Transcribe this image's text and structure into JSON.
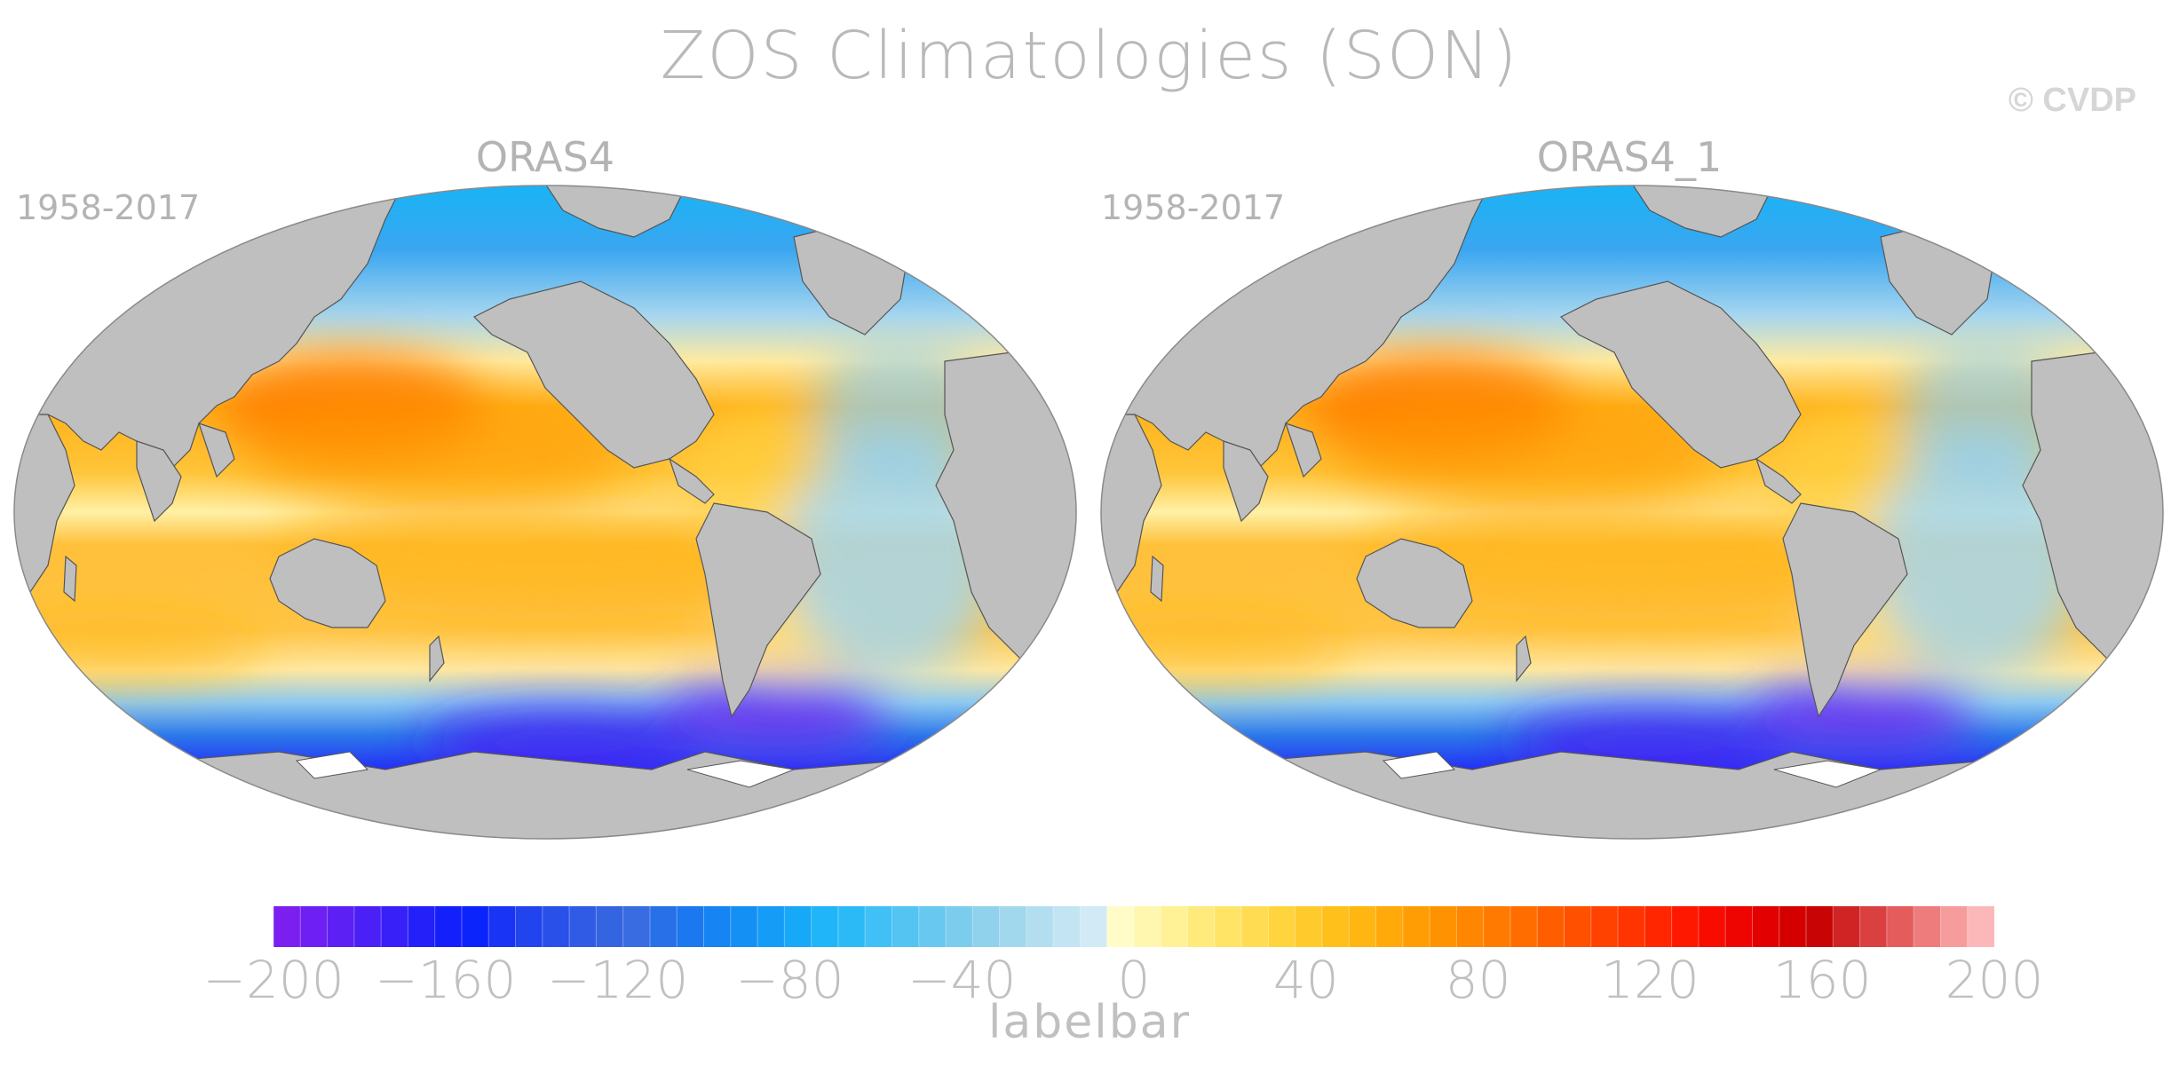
{
  "title": "ZOS Climatologies (SON)",
  "credit": "© CVDP",
  "panels": [
    {
      "title": "ORAS4",
      "period": "1958-2017"
    },
    {
      "title": "ORAS4_1",
      "period": "1958-2017"
    }
  ],
  "colorbar": {
    "label": "labelbar",
    "ticks": [
      "-200",
      "-160",
      "-120",
      "-80",
      "-40",
      "0",
      "40",
      "80",
      "120",
      "160",
      "200"
    ],
    "range": [
      -200,
      200
    ],
    "colors": [
      "#7b1ff0",
      "#6e1ff3",
      "#5c20f5",
      "#4a20f7",
      "#3720f8",
      "#2420fa",
      "#1420fc",
      "#0c24fc",
      "#1a34f5",
      "#2244ef",
      "#2a50ea",
      "#305ce5",
      "#3464e0",
      "#386ce0",
      "#2870e8",
      "#1c78ee",
      "#1684f2",
      "#1490f5",
      "#149cf7",
      "#18a8f8",
      "#20b4f8",
      "#2cbaf7",
      "#40c0f5",
      "#54c4f2",
      "#68c8f0",
      "#7ccced",
      "#90d2ec",
      "#a2d8ee",
      "#b2def0",
      "#c2e4f3",
      "#d2eaf6",
      "#fffcc8",
      "#fff7b0",
      "#fff196",
      "#ffea7c",
      "#ffe466",
      "#ffdc52",
      "#ffd43e",
      "#ffca2c",
      "#ffc01c",
      "#ffb612",
      "#ffaa0a",
      "#ff9e04",
      "#ff9200",
      "#ff8600",
      "#ff7a00",
      "#ff6c00",
      "#ff5e00",
      "#ff5000",
      "#ff4200",
      "#ff3400",
      "#ff2600",
      "#ff1800",
      "#f80c00",
      "#ee0400",
      "#e20000",
      "#d40000",
      "#c80404",
      "#d02424",
      "#da4040",
      "#e45c5c",
      "#ee7c7c",
      "#f69c9c",
      "#fcb8b8"
    ],
    "colors_note": "color swatches left to right"
  }
}
